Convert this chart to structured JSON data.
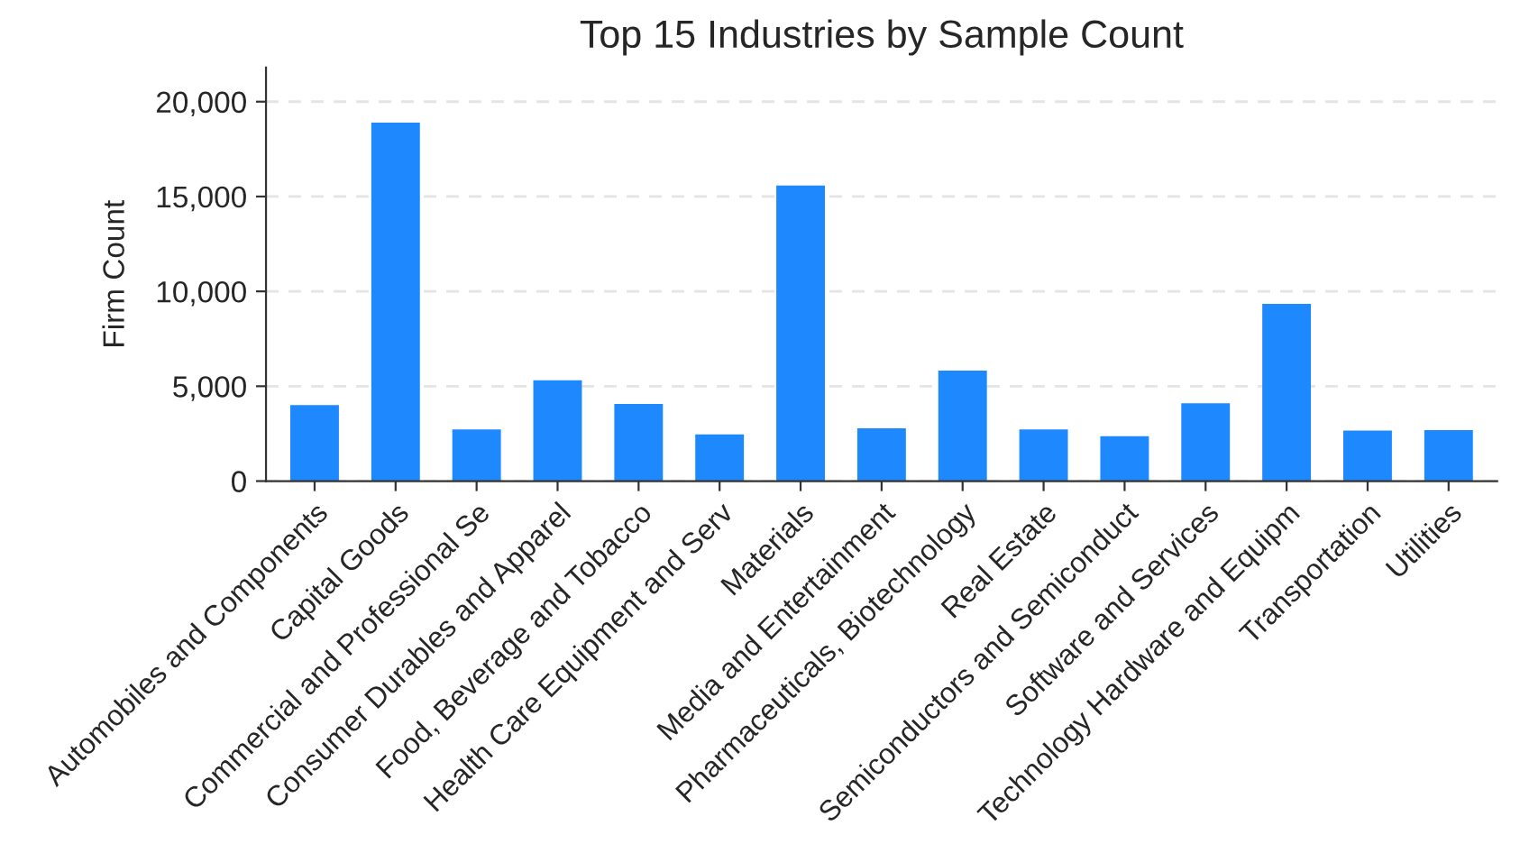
{
  "chart_data": {
    "type": "bar",
    "title": "Top 15 Industries by Sample Count",
    "ylabel": "Firm Count",
    "categories": [
      "Automobiles and Components",
      "Capital Goods",
      "Commercial and Professional Se",
      "Consumer Durables and Apparel",
      "Food, Beverage and Tobacco",
      "Health Care Equipment and Serv",
      "Materials",
      "Media and Entertainment",
      "Pharmaceuticals, Biotechnology",
      "Real Estate",
      "Semiconductors and Semiconduct",
      "Software and Services",
      "Technology Hardware and Equipm",
      "Transportation",
      "Utilities"
    ],
    "values": [
      4000,
      18900,
      2720,
      5310,
      4060,
      2460,
      15580,
      2780,
      5820,
      2720,
      2370,
      4100,
      9340,
      2660,
      2690
    ],
    "color": "#1e88ff",
    "ylim": [
      0,
      21800
    ],
    "yticks": [
      {
        "value": 0,
        "label": "0"
      },
      {
        "value": 5000,
        "label": "5,000"
      },
      {
        "value": 10000,
        "label": "10,000"
      },
      {
        "value": 15000,
        "label": "15,000"
      },
      {
        "value": 20000,
        "label": "20,000"
      }
    ],
    "grid": "y"
  }
}
